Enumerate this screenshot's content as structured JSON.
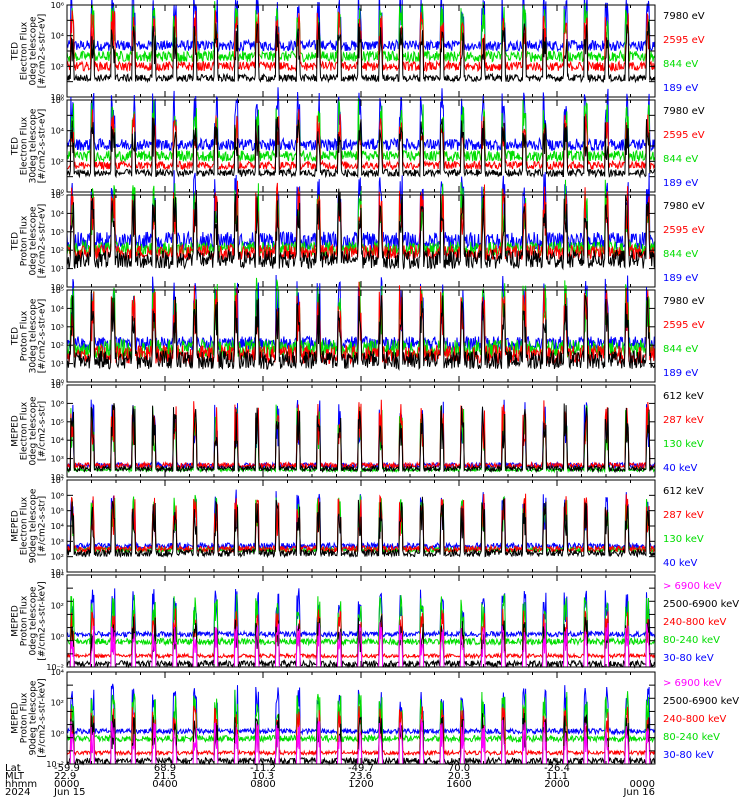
{
  "chart_data": [
    {
      "type": "line",
      "ylabel": [
        "TED",
        "Electron Flux",
        "0deg telescope",
        "[#/cm2-s-str-eV]"
      ],
      "yscale": "log",
      "ylim": [
        1,
        1000000
      ],
      "y_ticks": [
        "10⁰",
        "10²",
        "10⁴",
        "10⁶"
      ],
      "series": [
        {
          "name": "7980 eV",
          "color": "#000000",
          "baseline": [
            10,
            30
          ]
        },
        {
          "name": "2595 eV",
          "color": "#ff0000",
          "baseline": [
            50,
            200
          ]
        },
        {
          "name": "844 eV",
          "color": "#00dd00",
          "baseline": [
            200,
            1000
          ]
        },
        {
          "name": "189 eV",
          "color": "#0000ff",
          "baseline": [
            1000,
            5000
          ]
        }
      ]
    },
    {
      "type": "line",
      "ylabel": [
        "TED",
        "Electron Flux",
        "30deg telescope",
        "[#/cm2-s-str-eV]"
      ],
      "yscale": "log",
      "ylim": [
        1,
        1000000
      ],
      "y_ticks": [
        "10⁰",
        "10²",
        "10⁴",
        "10⁶"
      ],
      "series": [
        {
          "name": "7980 eV",
          "color": "#000000",
          "baseline": [
            10,
            30
          ]
        },
        {
          "name": "2595 eV",
          "color": "#ff0000",
          "baseline": [
            30,
            100
          ]
        },
        {
          "name": "844 eV",
          "color": "#00dd00",
          "baseline": [
            100,
            500
          ]
        },
        {
          "name": "189 eV",
          "color": "#0000ff",
          "baseline": [
            500,
            3000
          ]
        }
      ]
    },
    {
      "type": "line",
      "ylabel": [
        "TED",
        "Proton Flux",
        "0deg telescope",
        "[#/cm2-s-str-eV]"
      ],
      "yscale": "log",
      "ylim": [
        1,
        100000
      ],
      "y_ticks": [
        "10⁰",
        "10¹",
        "10²",
        "10³",
        "10⁴",
        "10⁵"
      ],
      "series": [
        {
          "name": "7980 eV",
          "color": "#000000",
          "baseline": [
            10,
            100
          ]
        },
        {
          "name": "2595 eV",
          "color": "#ff0000",
          "baseline": [
            30,
            200
          ]
        },
        {
          "name": "844 eV",
          "color": "#00dd00",
          "baseline": [
            50,
            300
          ]
        },
        {
          "name": "189 eV",
          "color": "#0000ff",
          "baseline": [
            100,
            1000
          ]
        }
      ]
    },
    {
      "type": "line",
      "ylabel": [
        "TED",
        "Proton Flux",
        "30deg telescope",
        "[#/cm2-s-str-eV]"
      ],
      "yscale": "log",
      "ylim": [
        1,
        100000
      ],
      "y_ticks": [
        "10⁰",
        "10¹",
        "10²",
        "10³",
        "10⁴",
        "10⁵"
      ],
      "series": [
        {
          "name": "7980 eV",
          "color": "#000000",
          "baseline": [
            5,
            50
          ]
        },
        {
          "name": "2595 eV",
          "color": "#ff0000",
          "baseline": [
            10,
            100
          ]
        },
        {
          "name": "844 eV",
          "color": "#00dd00",
          "baseline": [
            20,
            200
          ]
        },
        {
          "name": "189 eV",
          "color": "#0000ff",
          "baseline": [
            50,
            300
          ]
        }
      ]
    },
    {
      "type": "line",
      "ylabel": [
        "MEPED",
        "Electron Flux",
        "0deg telescope",
        "[#/cm2-s-str]"
      ],
      "yscale": "log",
      "ylim": [
        100,
        10000000
      ],
      "y_ticks": [
        "10²",
        "10³",
        "10⁴",
        "10⁵",
        "10⁶",
        "10⁷"
      ],
      "series": [
        {
          "name": "612 keV",
          "color": "#000000",
          "baseline": [
            200,
            400
          ]
        },
        {
          "name": "287 keV",
          "color": "#ff0000",
          "baseline": [
            300,
            600
          ]
        },
        {
          "name": "130 keV",
          "color": "#00dd00",
          "baseline": [
            200,
            300
          ]
        },
        {
          "name": "40 keV",
          "color": "#0000ff",
          "baseline": [
            300,
            600
          ]
        }
      ]
    },
    {
      "type": "line",
      "ylabel": [
        "MEPED",
        "Electron Flux",
        "90deg telescope",
        "[#/cm2-s-str]"
      ],
      "yscale": "log",
      "ylim": [
        10,
        10000000
      ],
      "y_ticks": [
        "10¹",
        "10²",
        "10³",
        "10⁴",
        "10⁵",
        "10⁶",
        "10⁷"
      ],
      "series": [
        {
          "name": "612 keV",
          "color": "#000000",
          "baseline": [
            100,
            300
          ]
        },
        {
          "name": "287 keV",
          "color": "#ff0000",
          "baseline": [
            200,
            500
          ]
        },
        {
          "name": "130 keV",
          "color": "#00dd00",
          "baseline": [
            200,
            400
          ]
        },
        {
          "name": "40 keV",
          "color": "#0000ff",
          "baseline": [
            300,
            800
          ]
        }
      ]
    },
    {
      "type": "line",
      "ylabel": [
        "MEPED",
        "Proton Flux",
        "0deg telescope",
        "[#/cm2-s-str-keV]"
      ],
      "yscale": "log",
      "ylim": [
        0.01,
        100000
      ],
      "y_ticks": [
        "10⁻²",
        "10⁰",
        "10²",
        "10⁴"
      ],
      "series": [
        {
          "name": "> 6900 keV",
          "color": "#ff00ff",
          "baseline": [
            0.005,
            0.01
          ]
        },
        {
          "name": "2500-6900 keV",
          "color": "#000000",
          "baseline": [
            0.01,
            0.03
          ]
        },
        {
          "name": "240-800 keV",
          "color": "#ff0000",
          "baseline": [
            0.05,
            0.1
          ]
        },
        {
          "name": "80-240 keV",
          "color": "#00dd00",
          "baseline": [
            0.5,
            1.5
          ]
        },
        {
          "name": "30-80 keV",
          "color": "#0000ff",
          "baseline": [
            2,
            5
          ]
        }
      ]
    },
    {
      "type": "line",
      "ylabel": [
        "MEPED",
        "Proton Flux",
        "90deg telescope",
        "[#/cm2-s-str-keV]"
      ],
      "yscale": "log",
      "ylim": [
        0.01,
        100000
      ],
      "y_ticks": [
        "10⁻²",
        "10⁰",
        "10²",
        "10⁴"
      ],
      "series": [
        {
          "name": "> 6900 keV",
          "color": "#ff00ff",
          "baseline": [
            0.005,
            0.01
          ]
        },
        {
          "name": "2500-6900 keV",
          "color": "#000000",
          "baseline": [
            0.01,
            0.03
          ]
        },
        {
          "name": "240-800 keV",
          "color": "#ff0000",
          "baseline": [
            0.05,
            0.1
          ]
        },
        {
          "name": "80-240 keV",
          "color": "#00dd00",
          "baseline": [
            0.5,
            1.5
          ]
        },
        {
          "name": "30-80 keV",
          "color": "#0000ff",
          "baseline": [
            2,
            5
          ]
        }
      ]
    }
  ],
  "x_axis": {
    "row_labels": [
      "Lat",
      "MLT",
      "hhmm",
      "2024"
    ],
    "xlim_hours": [
      0,
      24
    ],
    "columns": [
      {
        "hour": 0,
        "values": [
          "-59.9",
          "22.9",
          "0000",
          "Jun 15"
        ]
      },
      {
        "hour": 4,
        "values": [
          "68.9",
          "21.5",
          "0400",
          ""
        ]
      },
      {
        "hour": 8,
        "values": [
          "-11.2",
          "10.3",
          "0800",
          ""
        ]
      },
      {
        "hour": 12,
        "values": [
          "-49.7",
          "23.6",
          "1200",
          ""
        ]
      },
      {
        "hour": 16,
        "values": [
          "70.0",
          "20.3",
          "1600",
          ""
        ]
      },
      {
        "hour": 20,
        "values": [
          "-26.4",
          "11.1",
          "2000",
          ""
        ]
      },
      {
        "hour": 24,
        "values": [
          "",
          "",
          "0000",
          "Jun 16"
        ]
      }
    ]
  }
}
